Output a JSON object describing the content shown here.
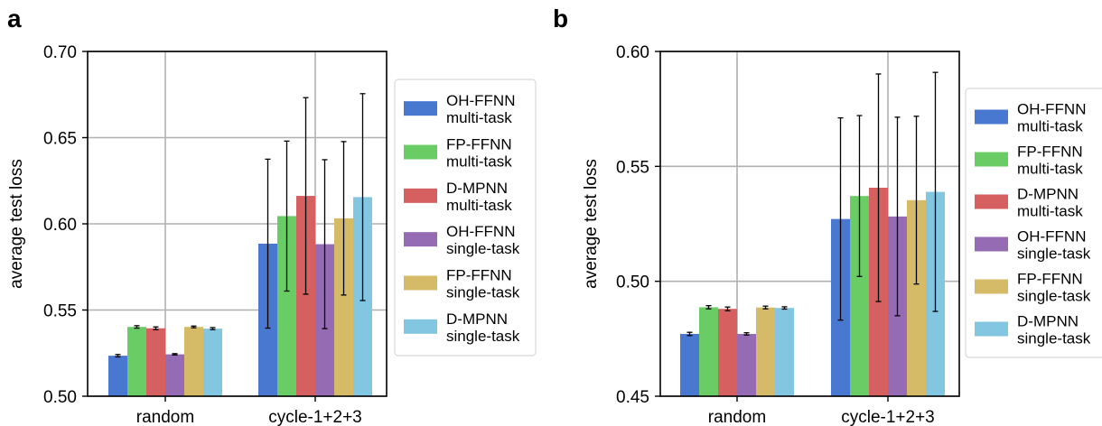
{
  "chart_data": [
    {
      "panel": "a",
      "type": "bar",
      "ylabel": "average test loss",
      "ylim": [
        0.5,
        0.7
      ],
      "yticks": [
        "0.50",
        "0.55",
        "0.60",
        "0.65",
        "0.70"
      ],
      "categories": [
        "random",
        "cycle-1+2+3"
      ],
      "grid": true,
      "legend_position": "right",
      "series": [
        {
          "name": "OH-FFNN multi-task",
          "legend": [
            "OH-FFNN",
            "multi-task"
          ],
          "color": "#4878d0",
          "values": [
            0.5235,
            0.5885
          ],
          "errors": [
            0.0007,
            0.049
          ]
        },
        {
          "name": "FP-FFNN multi-task",
          "legend": [
            "FP-FFNN",
            "multi-task"
          ],
          "color": "#6acc64",
          "values": [
            0.5402,
            0.6045
          ],
          "errors": [
            0.0007,
            0.0435
          ]
        },
        {
          "name": "D-MPNN multi-task",
          "legend": [
            "D-MPNN",
            "multi-task"
          ],
          "color": "#d65f5f",
          "values": [
            0.5394,
            0.6162
          ],
          "errors": [
            0.0008,
            0.057
          ]
        },
        {
          "name": "OH-FFNN single-task",
          "legend": [
            "OH-FFNN",
            "single-task"
          ],
          "color": "#956cb4",
          "values": [
            0.5243,
            0.5882
          ],
          "errors": [
            0.0004,
            0.049
          ]
        },
        {
          "name": "FP-FFNN single-task",
          "legend": [
            "FP-FFNN",
            "single-task"
          ],
          "color": "#d5bb67",
          "values": [
            0.5402,
            0.6032
          ],
          "errors": [
            0.0005,
            0.0445
          ]
        },
        {
          "name": "D-MPNN single-task",
          "legend": [
            "D-MPNN",
            "single-task"
          ],
          "color": "#82c6e2",
          "values": [
            0.5392,
            0.6155
          ],
          "errors": [
            0.0006,
            0.06
          ]
        }
      ]
    },
    {
      "panel": "b",
      "type": "bar",
      "ylabel": "average test loss",
      "ylim": [
        0.45,
        0.6
      ],
      "yticks": [
        "0.45",
        "0.50",
        "0.55",
        "0.60"
      ],
      "categories": [
        "random",
        "cycle-1+2+3"
      ],
      "grid": true,
      "legend_position": "right",
      "series": [
        {
          "name": "OH-FFNN multi-task",
          "legend": [
            "OH-FFNN",
            "multi-task"
          ],
          "color": "#4878d0",
          "values": [
            0.4771,
            0.5271
          ],
          "errors": [
            0.0007,
            0.044
          ]
        },
        {
          "name": "FP-FFNN multi-task",
          "legend": [
            "FP-FFNN",
            "multi-task"
          ],
          "color": "#6acc64",
          "values": [
            0.4887,
            0.5371
          ],
          "errors": [
            0.0007,
            0.035
          ]
        },
        {
          "name": "D-MPNN multi-task",
          "legend": [
            "D-MPNN",
            "multi-task"
          ],
          "color": "#d65f5f",
          "values": [
            0.488,
            0.5407
          ],
          "errors": [
            0.0008,
            0.0495
          ]
        },
        {
          "name": "OH-FFNN single-task",
          "legend": [
            "OH-FFNN",
            "single-task"
          ],
          "color": "#956cb4",
          "values": [
            0.4771,
            0.5282
          ],
          "errors": [
            0.0005,
            0.0432
          ]
        },
        {
          "name": "FP-FFNN single-task",
          "legend": [
            "FP-FFNN",
            "single-task"
          ],
          "color": "#d5bb67",
          "values": [
            0.4886,
            0.5353
          ],
          "errors": [
            0.0006,
            0.0365
          ]
        },
        {
          "name": "D-MPNN single-task",
          "legend": [
            "D-MPNN",
            "single-task"
          ],
          "color": "#82c6e2",
          "values": [
            0.4884,
            0.5389
          ],
          "errors": [
            0.0005,
            0.052
          ]
        }
      ]
    }
  ]
}
